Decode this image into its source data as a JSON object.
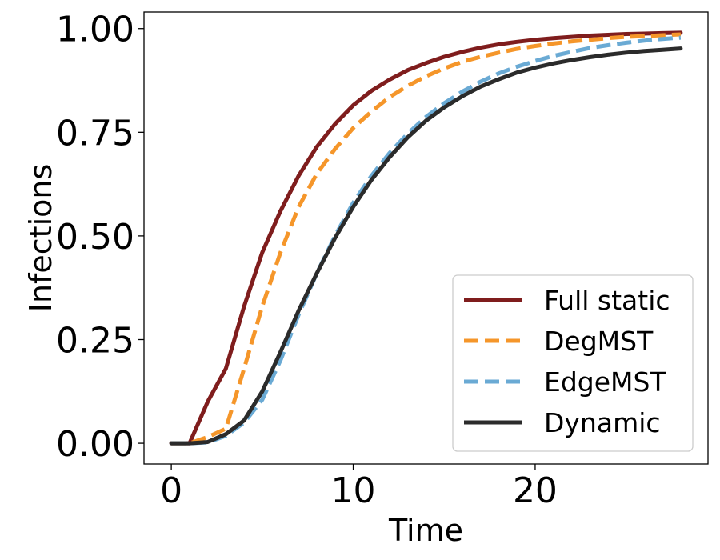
{
  "chart_data": {
    "type": "line",
    "xlabel": "Time",
    "ylabel": "Infections",
    "xlim": [
      -1.5,
      29.5
    ],
    "ylim": [
      -0.05,
      1.04
    ],
    "x_ticks": [
      0,
      10,
      20
    ],
    "x_tick_labels": [
      "0",
      "10",
      "20"
    ],
    "y_ticks": [
      0.0,
      0.25,
      0.5,
      0.75,
      1.0
    ],
    "y_tick_labels": [
      "0.00",
      "0.25",
      "0.50",
      "0.75",
      "1.00"
    ],
    "grid": false,
    "legend_position": "lower-right",
    "series": [
      {
        "name": "Full static",
        "color": "#7f1d1d",
        "dash": "solid",
        "x": [
          0,
          1,
          2,
          3,
          4,
          5,
          6,
          7,
          8,
          9,
          10,
          11,
          12,
          13,
          14,
          15,
          16,
          17,
          18,
          19,
          20,
          21,
          22,
          23,
          24,
          25,
          26,
          27,
          28
        ],
        "values": [
          0.0,
          0.0,
          0.1,
          0.18,
          0.33,
          0.46,
          0.56,
          0.645,
          0.715,
          0.77,
          0.815,
          0.85,
          0.877,
          0.9,
          0.917,
          0.932,
          0.944,
          0.954,
          0.962,
          0.968,
          0.973,
          0.977,
          0.98,
          0.983,
          0.985,
          0.987,
          0.988,
          0.989,
          0.99
        ]
      },
      {
        "name": "DegMST",
        "color": "#f5962a",
        "dash": "dashed",
        "x": [
          0,
          1,
          2,
          3,
          4,
          5,
          6,
          7,
          8,
          9,
          10,
          11,
          12,
          13,
          14,
          15,
          16,
          17,
          18,
          19,
          20,
          21,
          22,
          23,
          24,
          25,
          26,
          27,
          28
        ],
        "values": [
          0.0,
          0.0,
          0.015,
          0.035,
          0.18,
          0.33,
          0.46,
          0.57,
          0.65,
          0.71,
          0.76,
          0.8,
          0.835,
          0.862,
          0.885,
          0.904,
          0.92,
          0.932,
          0.942,
          0.951,
          0.958,
          0.964,
          0.969,
          0.973,
          0.977,
          0.98,
          0.982,
          0.984,
          0.986
        ]
      },
      {
        "name": "EdgeMST",
        "color": "#6aaad4",
        "dash": "dashed",
        "x": [
          0,
          1,
          2,
          3,
          4,
          5,
          6,
          7,
          8,
          9,
          10,
          11,
          12,
          13,
          14,
          15,
          16,
          17,
          18,
          19,
          20,
          21,
          22,
          23,
          24,
          25,
          26,
          27,
          28
        ],
        "values": [
          0.0,
          0.0,
          0.002,
          0.018,
          0.05,
          0.105,
          0.2,
          0.31,
          0.41,
          0.5,
          0.58,
          0.645,
          0.7,
          0.747,
          0.787,
          0.82,
          0.848,
          0.872,
          0.892,
          0.908,
          0.922,
          0.934,
          0.944,
          0.953,
          0.96,
          0.966,
          0.971,
          0.975,
          0.978
        ]
      },
      {
        "name": "Dynamic",
        "color": "#2b2b2b",
        "dash": "solid",
        "x": [
          0,
          1,
          2,
          3,
          4,
          5,
          6,
          7,
          8,
          9,
          10,
          11,
          12,
          13,
          14,
          15,
          16,
          17,
          18,
          19,
          20,
          21,
          22,
          23,
          24,
          25,
          26,
          27,
          28
        ],
        "values": [
          0.0,
          0.0,
          0.003,
          0.022,
          0.055,
          0.125,
          0.22,
          0.32,
          0.41,
          0.495,
          0.57,
          0.635,
          0.69,
          0.738,
          0.778,
          0.81,
          0.837,
          0.86,
          0.878,
          0.894,
          0.906,
          0.916,
          0.924,
          0.931,
          0.937,
          0.942,
          0.946,
          0.949,
          0.952
        ]
      }
    ]
  }
}
